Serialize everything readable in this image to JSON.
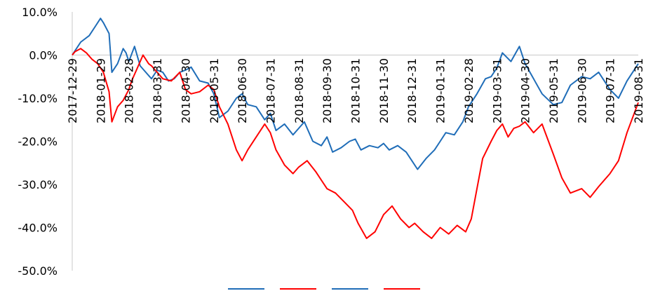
{
  "chart_data": {
    "type": "line",
    "title": "",
    "xlabel": "",
    "ylabel": "",
    "ylim": [
      -50,
      10
    ],
    "y_ticks": [
      10,
      0,
      -10,
      -20,
      -30,
      -40,
      -50
    ],
    "y_tick_labels": [
      "10.0%",
      "0.0%",
      "-10.0%",
      "-20.0%",
      "-30.0%",
      "-40.0%",
      "-50.0%"
    ],
    "x_tick_labels": [
      "2017-12-29",
      "2018-01-29",
      "2018-02-28",
      "2018-03-31",
      "2018-04-30",
      "2018-05-31",
      "2018-06-30",
      "2018-07-31",
      "2018-08-31",
      "2018-09-30",
      "2018-10-31",
      "2018-11-30",
      "2018-12-31",
      "2019-01-31",
      "2019-02-28",
      "2019-03-31",
      "2019-04-30",
      "2019-05-31",
      "2019-06-30",
      "2019-07-31",
      "2019-08-31"
    ],
    "grid": false,
    "legend": "bottom",
    "legend_labels": [
      "",
      "",
      "",
      ""
    ],
    "colors": {
      "blue": "#1f6db8",
      "red": "#ff0000",
      "axis": "#c8c8c8"
    },
    "series": [
      {
        "color": "#1f6db8",
        "x": [
          0,
          0.1,
          0.3,
          0.6,
          0.8,
          1.0,
          1.1,
          1.3,
          1.4,
          1.6,
          1.8,
          1.9,
          2.0,
          2.2,
          2.4,
          2.6,
          2.8,
          3.0,
          3.2,
          3.4,
          3.6,
          3.8,
          4.0,
          4.2,
          4.5,
          4.8,
          5.0,
          5.2,
          5.5,
          5.8,
          6.0,
          6.2,
          6.5,
          6.8,
          7.0,
          7.2,
          7.5,
          7.8,
          8.0,
          8.2,
          8.5,
          8.8,
          9.0,
          9.2,
          9.5,
          9.8,
          10.0,
          10.2,
          10.5,
          10.8,
          11.0,
          11.2,
          11.5,
          11.8,
          12.0,
          12.2,
          12.5,
          12.8,
          13.0,
          13.2,
          13.5,
          13.8,
          14.0,
          14.3,
          14.6,
          14.8,
          15.0,
          15.2,
          15.5,
          15.8,
          16.0,
          16.3,
          16.6,
          17.0,
          17.3,
          17.6,
          18.0,
          18.3,
          18.6,
          19.0,
          19.3,
          19.6,
          20.0
        ],
        "y": [
          0,
          1.0,
          3.0,
          4.5,
          6.5,
          8.5,
          7.5,
          5.0,
          -4.0,
          -2.0,
          1.5,
          0.5,
          -1.5,
          2.0,
          -2.5,
          -4.0,
          -5.5,
          -3.5,
          -4.0,
          -6.0,
          -5.5,
          -4.0,
          -3.5,
          -2.8,
          -6.0,
          -6.5,
          -9.0,
          -14.5,
          -13.0,
          -10.0,
          -9.0,
          -11.5,
          -12.0,
          -15.0,
          -13.5,
          -17.5,
          -16.0,
          -18.5,
          -17.0,
          -15.5,
          -20.0,
          -21.0,
          -19.0,
          -22.5,
          -21.5,
          -20.0,
          -19.5,
          -22.0,
          -21.0,
          -21.5,
          -20.5,
          -22.0,
          -21.0,
          -22.5,
          -24.5,
          -26.5,
          -24.0,
          -22.0,
          -20.0,
          -18.0,
          -18.5,
          -15.5,
          -12.0,
          -9.0,
          -5.5,
          -5.0,
          -3.0,
          0.5,
          -1.5,
          2.0,
          -2.0,
          -5.5,
          -9.0,
          -11.5,
          -11.0,
          -7.0,
          -5.0,
          -5.5,
          -4.0,
          -8.0,
          -10.0,
          -6.0,
          -2.0
        ]
      },
      {
        "color": "#ff0000",
        "x": [
          0,
          0.1,
          0.3,
          0.5,
          0.7,
          0.9,
          1.0,
          1.1,
          1.3,
          1.4,
          1.6,
          1.8,
          2.0,
          2.1,
          2.3,
          2.5,
          2.7,
          2.8,
          3.0,
          3.2,
          3.5,
          3.8,
          4.0,
          4.2,
          4.5,
          4.8,
          5.0,
          5.2,
          5.5,
          5.8,
          6.0,
          6.2,
          6.5,
          6.8,
          7.0,
          7.2,
          7.5,
          7.8,
          8.0,
          8.3,
          8.6,
          9.0,
          9.3,
          9.6,
          9.9,
          10.1,
          10.4,
          10.7,
          11.0,
          11.3,
          11.6,
          11.9,
          12.1,
          12.4,
          12.7,
          13.0,
          13.3,
          13.6,
          13.9,
          14.1,
          14.3,
          14.5,
          14.8,
          15.0,
          15.2,
          15.4,
          15.6,
          15.8,
          16.0,
          16.3,
          16.6,
          17.0,
          17.3,
          17.6,
          18.0,
          18.3,
          18.6,
          19.0,
          19.3,
          19.6,
          20.0
        ],
        "y": [
          0,
          0.8,
          1.5,
          0.5,
          -1.0,
          -2.0,
          -3.0,
          -4.0,
          -8.5,
          -15.5,
          -12.0,
          -10.5,
          -8.0,
          -6.0,
          -3.0,
          0.0,
          -2.0,
          -2.5,
          -4.0,
          -5.5,
          -6.0,
          -4.0,
          -8.0,
          -9.0,
          -8.5,
          -7.0,
          -8.0,
          -12.0,
          -16.0,
          -22.0,
          -24.5,
          -22.0,
          -19.0,
          -16.0,
          -18.0,
          -22.0,
          -25.5,
          -27.5,
          -26.0,
          -24.5,
          -27.0,
          -31.0,
          -32.0,
          -34.0,
          -36.0,
          -39.0,
          -42.5,
          -41.0,
          -37.0,
          -35.0,
          -38.0,
          -40.0,
          -39.0,
          -41.0,
          -42.5,
          -40.0,
          -41.5,
          -39.5,
          -41.0,
          -38.0,
          -31.0,
          -24.0,
          -20.0,
          -17.5,
          -16.0,
          -19.0,
          -17.0,
          -16.5,
          -15.5,
          -18.0,
          -16.0,
          -23.0,
          -28.5,
          -32.0,
          -31.0,
          -33.0,
          -30.5,
          -27.5,
          -24.5,
          -18.0,
          -11.0
        ]
      }
    ]
  }
}
